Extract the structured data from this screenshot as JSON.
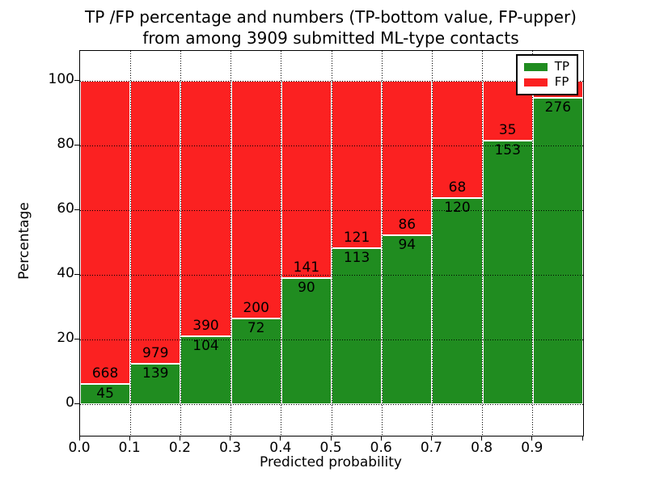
{
  "title": {
    "line1": "TP /FP percentage and numbers (TP-bottom value, FP-upper)",
    "line2": "from among 3909 submitted ML-type contacts"
  },
  "axes": {
    "x_label": "Predicted probability",
    "y_label": "Percentage",
    "x_ticks": [
      "0.0",
      "0.1",
      "0.2",
      "0.3",
      "0.4",
      "0.5",
      "0.6",
      "0.7",
      "0.8",
      "0.9"
    ],
    "y_ticks": [
      "0",
      "20",
      "40",
      "60",
      "80",
      "100"
    ]
  },
  "legend": {
    "items": [
      {
        "label": "TP",
        "color": "#208c20"
      },
      {
        "label": "FP",
        "color": "#fb2121"
      }
    ]
  },
  "colors": {
    "tp": "#208c20",
    "fp": "#fb2121",
    "grid": "#000000",
    "background": "#ffffff"
  },
  "chart_data": {
    "type": "bar",
    "stacked": true,
    "normalized_to_percent": true,
    "title": "TP /FP percentage and numbers (TP-bottom value, FP-upper) from among 3909 submitted ML-type contacts",
    "xlabel": "Predicted probability",
    "ylabel": "Percentage",
    "total_contacts": 3909,
    "bin_edges": [
      0.0,
      0.1,
      0.2,
      0.3,
      0.4,
      0.5,
      0.6,
      0.7,
      0.8,
      0.9,
      1.0
    ],
    "series": [
      {
        "name": "TP",
        "color": "#208c20",
        "counts": [
          45,
          139,
          104,
          72,
          90,
          113,
          94,
          120,
          153,
          276
        ]
      },
      {
        "name": "FP",
        "color": "#fb2121",
        "counts": [
          668,
          979,
          390,
          200,
          141,
          121,
          86,
          68,
          35,
          null
        ]
      }
    ],
    "tp_percent": [
      6.3,
      12.4,
      21.1,
      26.5,
      39.0,
      48.3,
      52.2,
      63.8,
      81.4,
      94.8
    ],
    "note_occluded": "FP count label of last bin hidden behind legend",
    "xlim": [
      0.0,
      1.0
    ],
    "ylim": [
      -10,
      110
    ],
    "grid": true,
    "grid_style": "dotted",
    "legend_position": "upper right"
  }
}
